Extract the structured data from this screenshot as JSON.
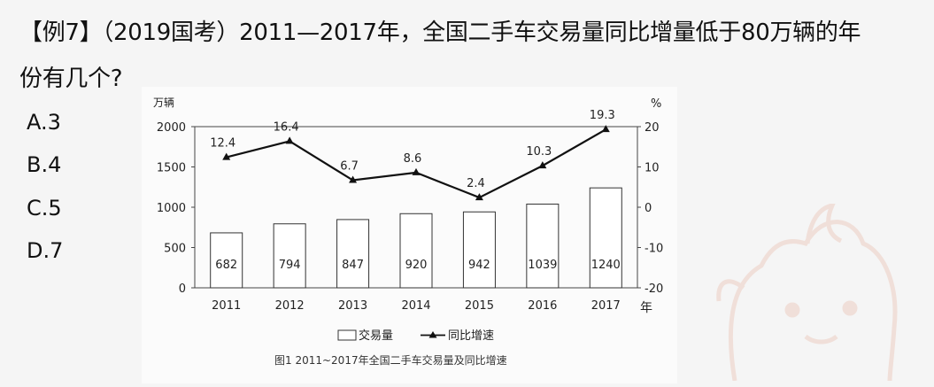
{
  "question": {
    "prefix": "【例7】",
    "source": "（2019国考）",
    "line1_text": "2011—2017年，全国二手车交易量同比增量低于80万辆的年",
    "line2_text": "份有几个?"
  },
  "options": [
    {
      "label": "A.3"
    },
    {
      "label": "B.4"
    },
    {
      "label": "C.5"
    },
    {
      "label": "D.7"
    }
  ],
  "chart_data": {
    "type": "bar+line",
    "title": "图1  2011~2017年全国二手车交易量及同比增速",
    "categories": [
      "2011",
      "2012",
      "2013",
      "2014",
      "2015",
      "2016",
      "2017"
    ],
    "x_unit": "年",
    "left_axis": {
      "unit": "万辆",
      "ylim": [
        0,
        2000
      ],
      "ticks": [
        "0",
        "500",
        "1000",
        "1500",
        "2000"
      ]
    },
    "right_axis": {
      "unit": "%",
      "ylim": [
        -20,
        20
      ],
      "ticks": [
        "-20",
        "-10",
        "0",
        "10",
        "20"
      ]
    },
    "series": [
      {
        "name": "交易量",
        "kind": "bar",
        "axis": "left",
        "values": [
          682,
          794,
          847,
          920,
          942,
          1039,
          1240
        ],
        "labels": [
          "682",
          "794",
          "847",
          "920",
          "942",
          "1039",
          "1240"
        ]
      },
      {
        "name": "同比增速",
        "kind": "line",
        "axis": "right",
        "values": [
          12.4,
          16.4,
          6.7,
          8.6,
          2.4,
          10.3,
          19.3
        ],
        "labels": [
          "12.4",
          "16.4",
          "6.7",
          "8.6",
          "2.4",
          "10.3",
          "19.3"
        ]
      }
    ],
    "legend": {
      "placement": "bottom"
    }
  }
}
